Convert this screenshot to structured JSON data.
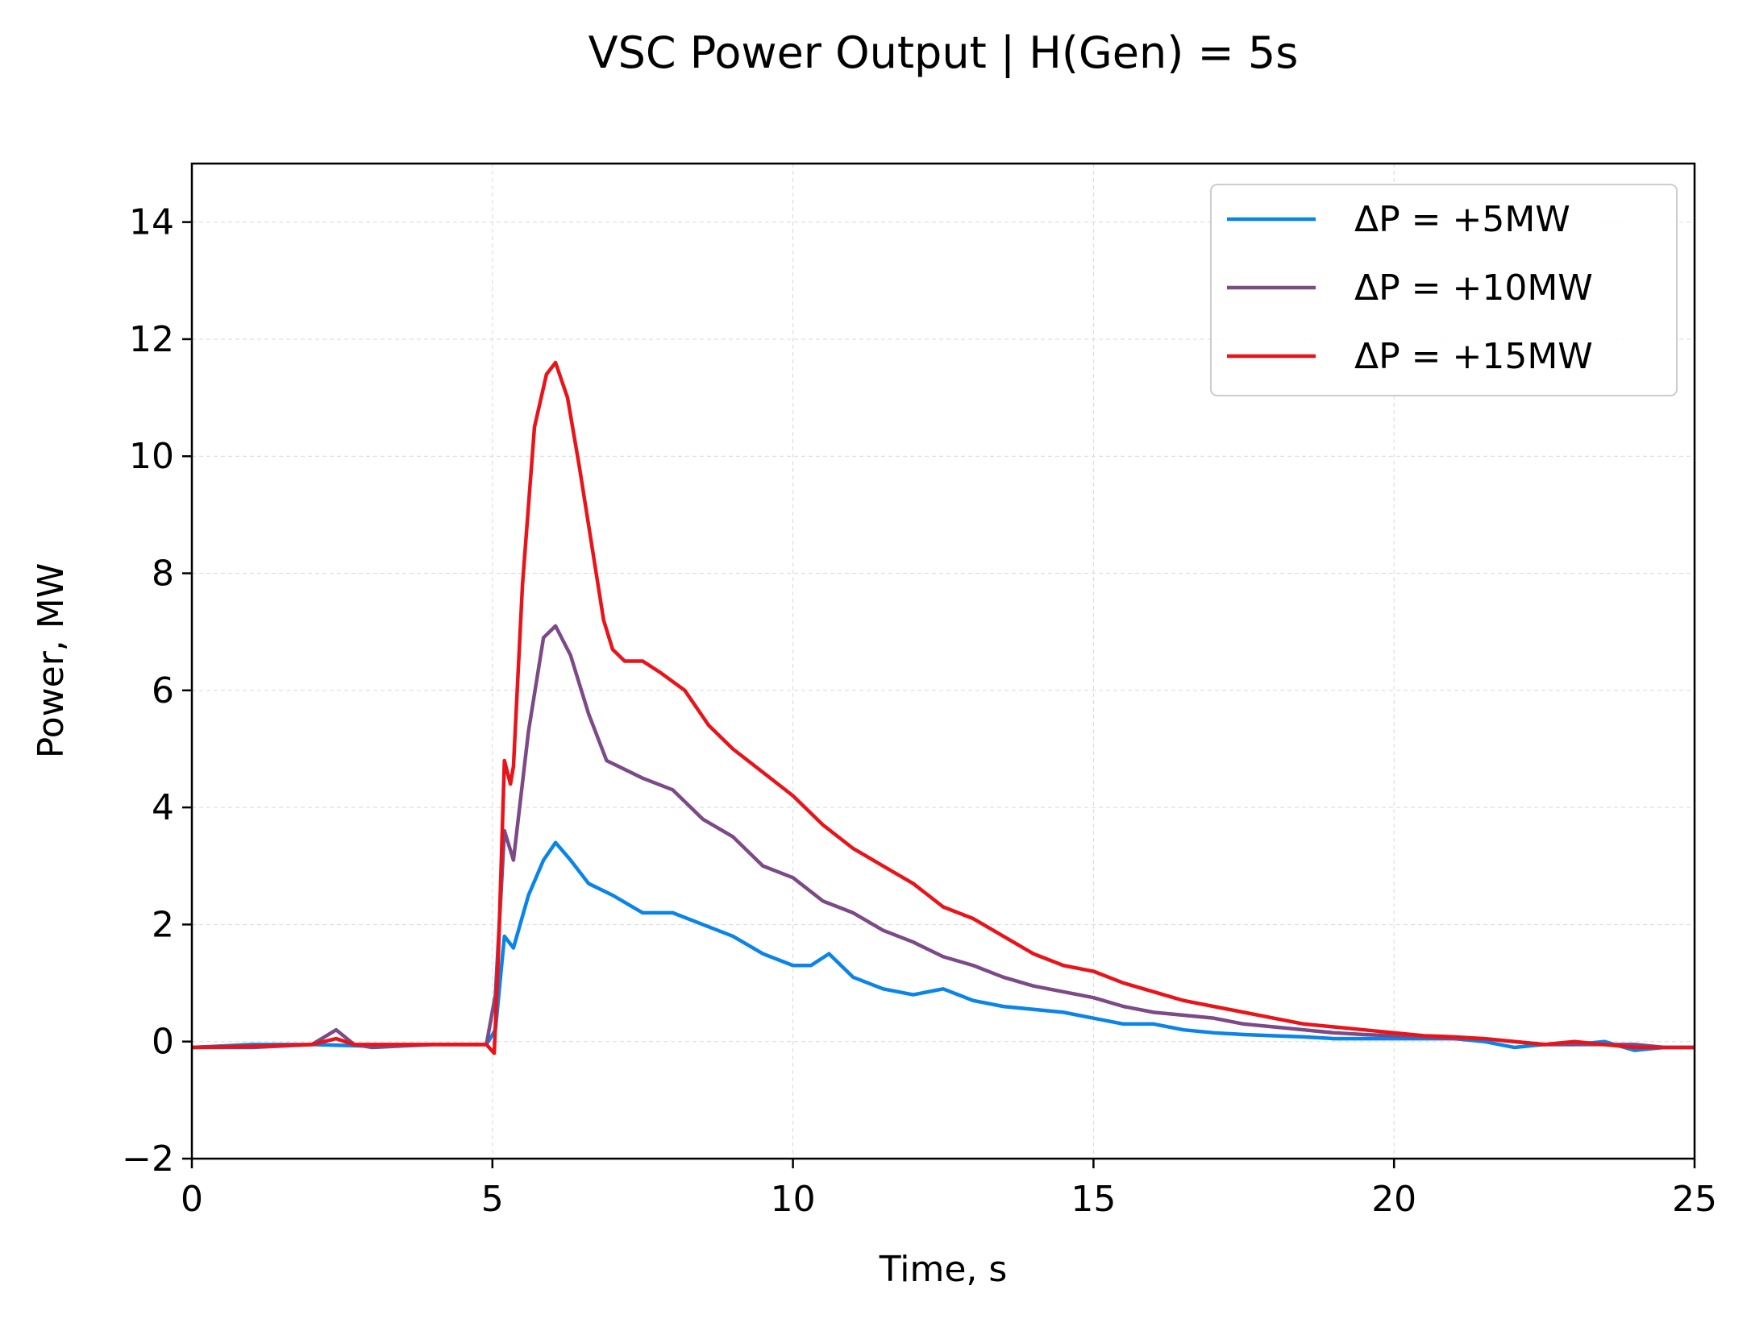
{
  "chart_data": {
    "type": "line",
    "title": "VSC Power Output  |  H(Gen) = 5s",
    "xlabel": "Time, s",
    "ylabel": "Power, MW",
    "xlim": [
      0,
      25
    ],
    "ylim": [
      -2,
      15
    ],
    "xticks": [
      0,
      5,
      10,
      15,
      20,
      25
    ],
    "yticks": [
      -2,
      0,
      2,
      4,
      6,
      8,
      10,
      12,
      14
    ],
    "xtick_labels": [
      "0",
      "5",
      "10",
      "15",
      "20",
      "25"
    ],
    "ytick_labels": [
      "−2",
      "0",
      "2",
      "4",
      "6",
      "8",
      "10",
      "12",
      "14"
    ],
    "grid": true,
    "legend_position": "upper right",
    "series": [
      {
        "name": "ΔP = +5MW",
        "color": "#0a84e8",
        "x": [
          0,
          1,
          2,
          3,
          4,
          4.9,
          5.05,
          5.2,
          5.35,
          5.6,
          5.85,
          6.05,
          6.3,
          6.6,
          7.0,
          7.5,
          8.0,
          8.5,
          9.0,
          9.5,
          10.0,
          10.3,
          10.6,
          11.0,
          11.5,
          12.0,
          12.5,
          13.0,
          13.5,
          14.0,
          14.5,
          15.0,
          15.5,
          16.0,
          16.5,
          17.0,
          17.5,
          18.0,
          18.5,
          19.0,
          19.5,
          20.0,
          20.5,
          21.0,
          21.5,
          22.0,
          22.5,
          23.0,
          23.5,
          24.0,
          24.5,
          25.0
        ],
        "y": [
          -0.1,
          -0.05,
          -0.05,
          -0.08,
          -0.05,
          -0.05,
          0.2,
          1.8,
          1.6,
          2.5,
          3.1,
          3.4,
          3.1,
          2.7,
          2.5,
          2.2,
          2.2,
          2.0,
          1.8,
          1.5,
          1.3,
          1.3,
          1.5,
          1.1,
          0.9,
          0.8,
          0.9,
          0.7,
          0.6,
          0.55,
          0.5,
          0.4,
          0.3,
          0.3,
          0.2,
          0.15,
          0.12,
          0.1,
          0.08,
          0.05,
          0.05,
          0.05,
          0.05,
          0.05,
          0.0,
          -0.1,
          -0.05,
          -0.05,
          0.0,
          -0.15,
          -0.1,
          -0.1
        ]
      },
      {
        "name": "ΔP = +10MW",
        "color": "#7b4a87",
        "x": [
          0,
          1,
          2,
          2.4,
          2.7,
          3,
          4,
          4.9,
          5.05,
          5.2,
          5.35,
          5.6,
          5.85,
          6.05,
          6.3,
          6.6,
          6.9,
          7.5,
          8.0,
          8.5,
          9.0,
          9.5,
          10.0,
          10.5,
          11.0,
          11.5,
          12.0,
          12.5,
          13.0,
          13.5,
          14.0,
          14.5,
          15.0,
          15.5,
          16.0,
          16.5,
          17.0,
          17.5,
          18.0,
          18.5,
          19.0,
          19.5,
          20.0,
          20.5,
          21.0,
          21.5,
          22.0,
          22.5,
          23.0,
          23.5,
          24.0,
          24.5,
          25.0
        ],
        "y": [
          -0.1,
          -0.1,
          -0.05,
          0.2,
          -0.05,
          -0.1,
          -0.05,
          -0.05,
          0.8,
          3.6,
          3.1,
          5.3,
          6.9,
          7.1,
          6.6,
          5.6,
          4.8,
          4.5,
          4.3,
          3.8,
          3.5,
          3.0,
          2.8,
          2.4,
          2.2,
          1.9,
          1.7,
          1.45,
          1.3,
          1.1,
          0.95,
          0.85,
          0.75,
          0.6,
          0.5,
          0.45,
          0.4,
          0.3,
          0.25,
          0.2,
          0.15,
          0.12,
          0.1,
          0.08,
          0.05,
          0.05,
          0.0,
          -0.05,
          -0.05,
          -0.05,
          -0.05,
          -0.1,
          -0.1
        ]
      },
      {
        "name": "ΔP = +15MW",
        "color": "#e8141a",
        "x": [
          0,
          1,
          2,
          2.4,
          2.7,
          3,
          4,
          4.9,
          5.03,
          5.1,
          5.2,
          5.3,
          5.35,
          5.5,
          5.7,
          5.9,
          6.05,
          6.25,
          6.45,
          6.65,
          6.85,
          7.0,
          7.2,
          7.5,
          7.8,
          8.2,
          8.6,
          9.0,
          9.5,
          10.0,
          10.5,
          11.0,
          11.5,
          12.0,
          12.5,
          13.0,
          13.5,
          14.0,
          14.5,
          15.0,
          15.5,
          16.0,
          16.5,
          17.0,
          17.5,
          18.0,
          18.5,
          19.0,
          19.5,
          20.0,
          20.5,
          21.0,
          21.5,
          22.0,
          22.5,
          23.0,
          23.5,
          24.0,
          24.5,
          25.0
        ],
        "y": [
          -0.1,
          -0.08,
          -0.05,
          0.05,
          -0.05,
          -0.05,
          -0.05,
          -0.05,
          -0.2,
          1.5,
          4.8,
          4.4,
          4.7,
          7.8,
          10.5,
          11.4,
          11.6,
          11.0,
          9.8,
          8.5,
          7.2,
          6.7,
          6.5,
          6.5,
          6.3,
          6.0,
          5.4,
          5.0,
          4.6,
          4.2,
          3.7,
          3.3,
          3.0,
          2.7,
          2.3,
          2.1,
          1.8,
          1.5,
          1.3,
          1.2,
          1.0,
          0.85,
          0.7,
          0.6,
          0.5,
          0.4,
          0.3,
          0.25,
          0.2,
          0.15,
          0.1,
          0.08,
          0.05,
          0.0,
          -0.05,
          0.0,
          -0.05,
          -0.1,
          -0.1,
          -0.1
        ]
      }
    ]
  }
}
